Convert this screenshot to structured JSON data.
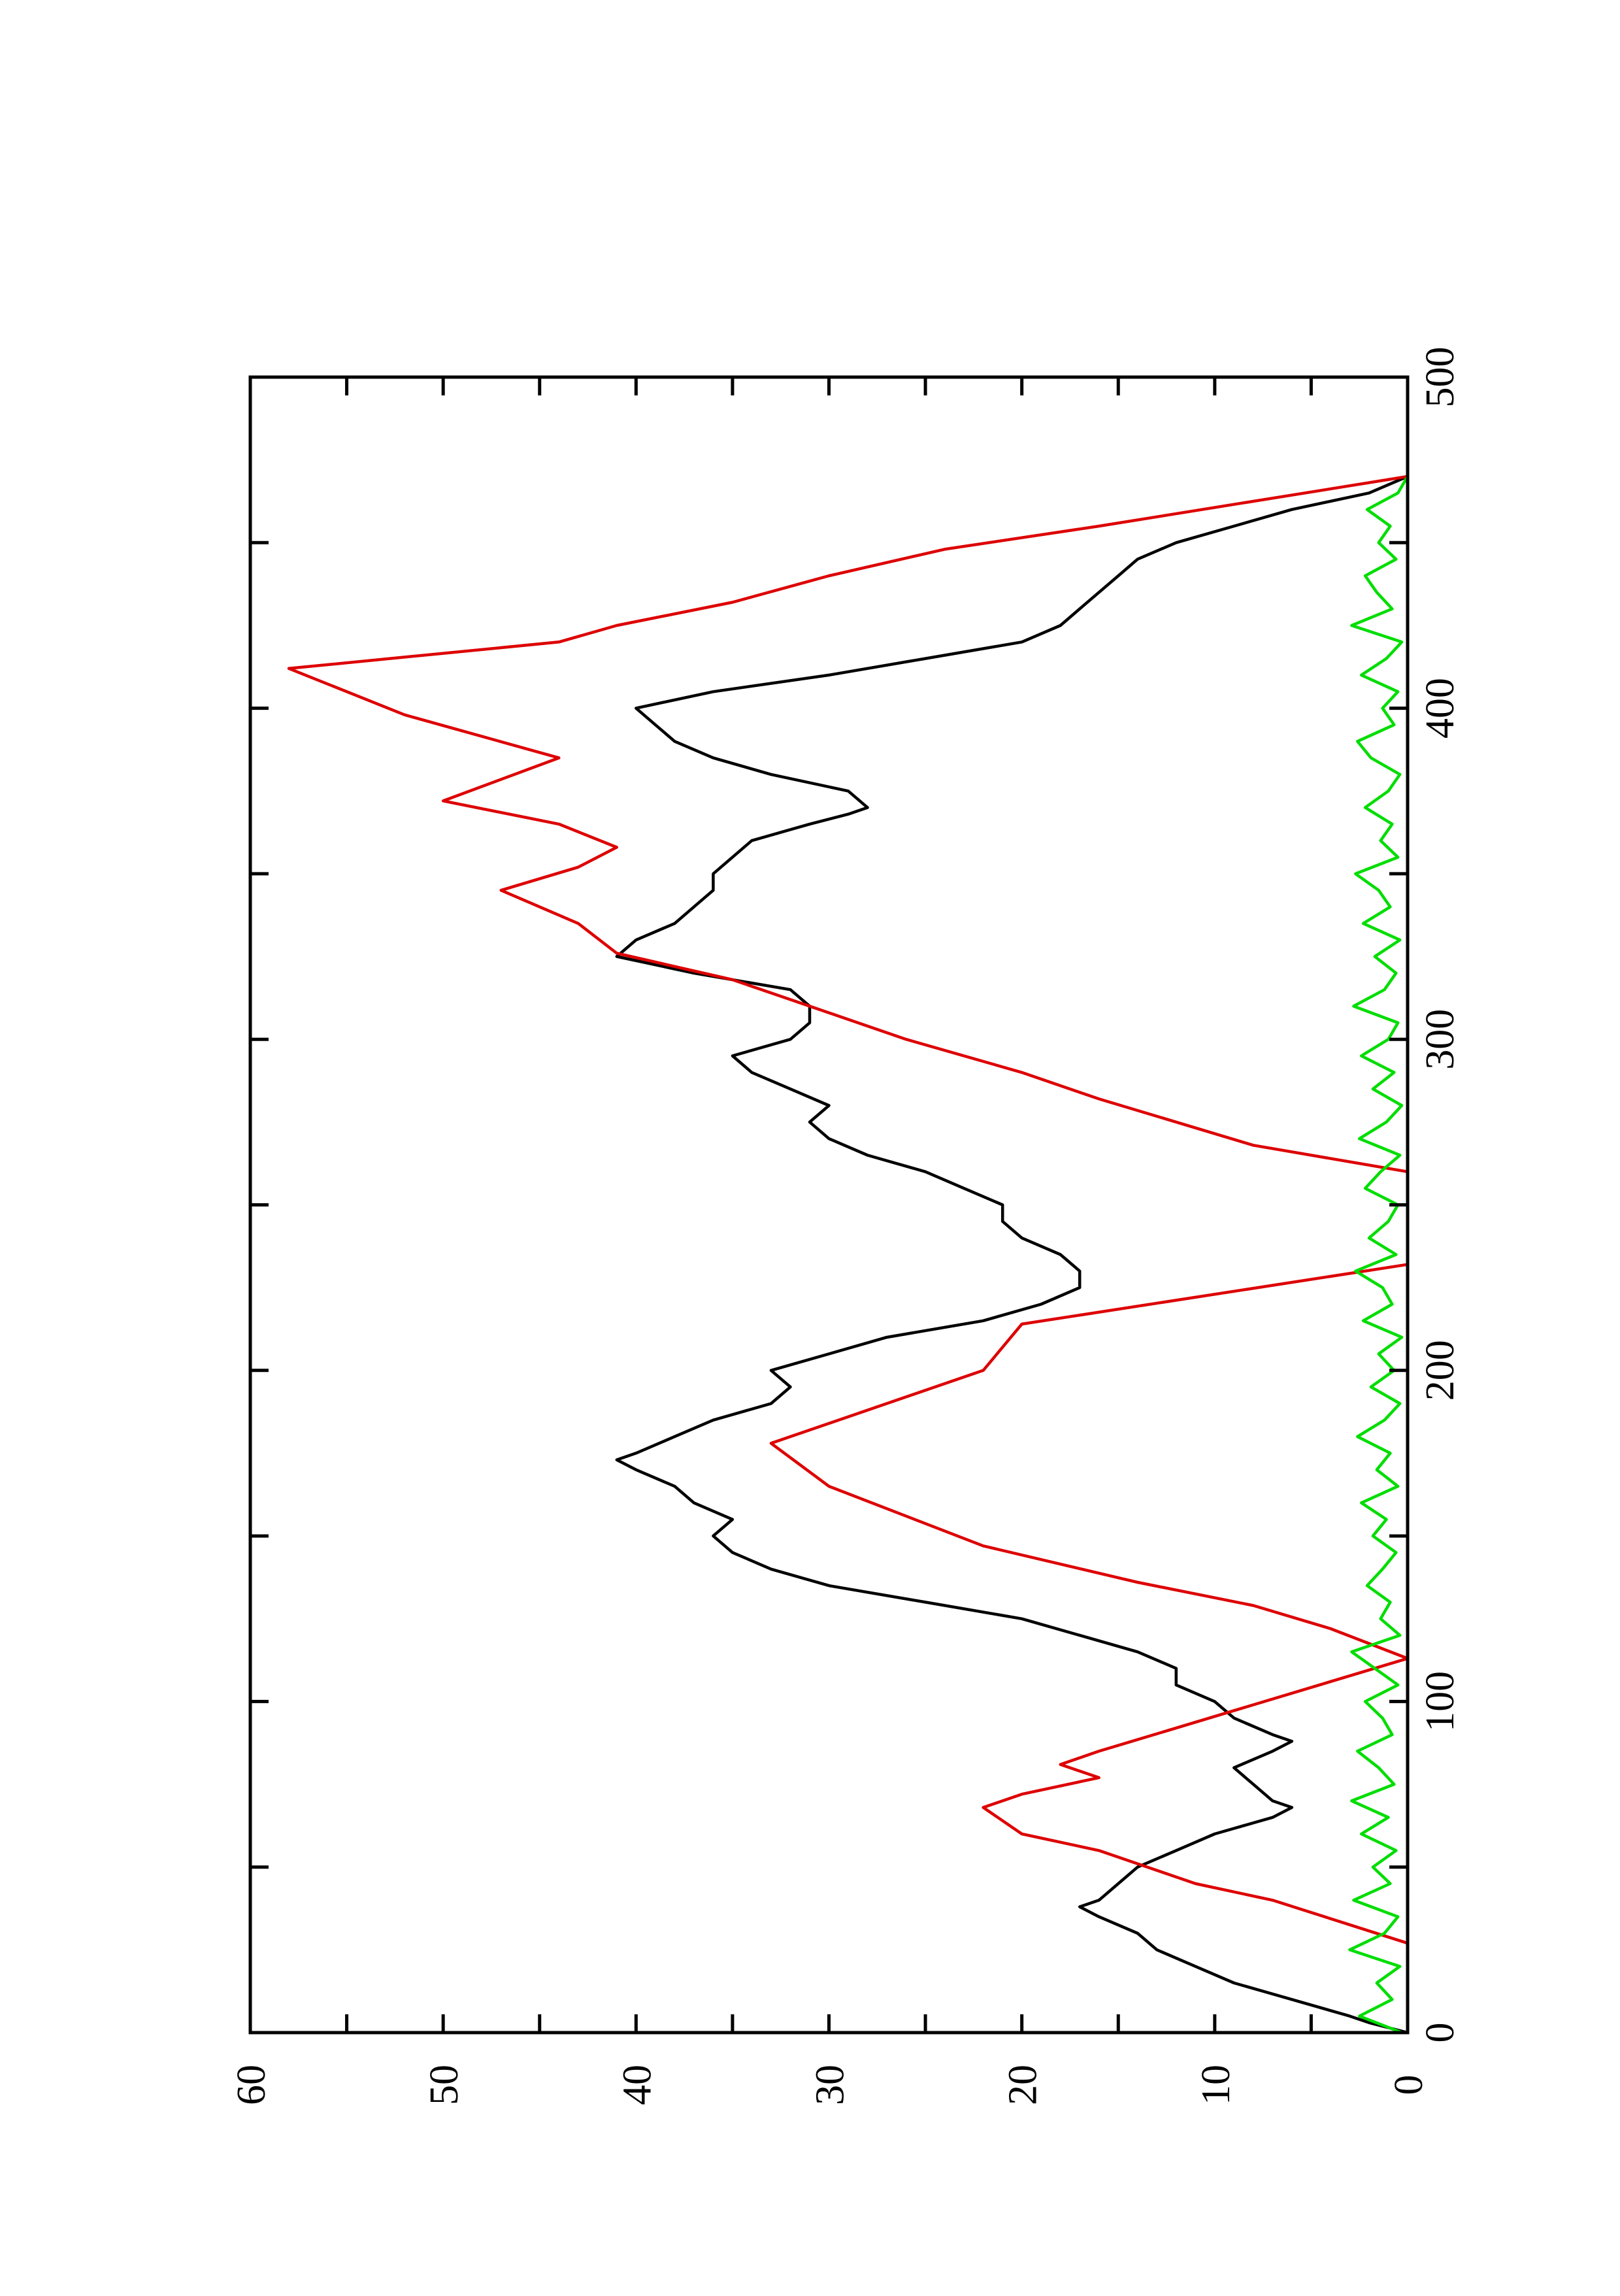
{
  "chart_data": {
    "type": "line",
    "orientation": "rotated-90-ccw",
    "xlim": [
      0,
      500
    ],
    "ylim": [
      0,
      60
    ],
    "x_ticks": [
      0,
      100,
      200,
      300,
      400,
      500
    ],
    "y_ticks": [
      0,
      10,
      20,
      30,
      40,
      50,
      60
    ],
    "x_tick_labels": [
      "0",
      "100",
      "200",
      "300",
      "400",
      "500"
    ],
    "y_tick_labels": [
      "0",
      "10",
      "20",
      "30",
      "40",
      "50",
      "60"
    ],
    "grid": false,
    "legend": "none",
    "series": [
      {
        "color": "#000000",
        "x": [
          0,
          3,
          5,
          10,
          15,
          20,
          25,
          30,
          35,
          38,
          40,
          45,
          50,
          55,
          60,
          65,
          68,
          70,
          75,
          80,
          85,
          88,
          90,
          95,
          100,
          105,
          110,
          115,
          120,
          125,
          130,
          135,
          140,
          145,
          150,
          155,
          160,
          165,
          170,
          173,
          175,
          180,
          185,
          190,
          195,
          200,
          205,
          210,
          215,
          220,
          225,
          230,
          235,
          240,
          245,
          250,
          255,
          260,
          265,
          270,
          275,
          280,
          285,
          290,
          295,
          300,
          305,
          310,
          315,
          320,
          325,
          330,
          335,
          340,
          345,
          350,
          355,
          360,
          365,
          368,
          370,
          375,
          380,
          385,
          390,
          395,
          400,
          405,
          410,
          415,
          420,
          425,
          430,
          435,
          440,
          445,
          450,
          455,
          460,
          465,
          470
        ],
        "y": [
          0,
          2,
          3,
          6,
          9,
          11,
          13,
          14,
          16,
          17,
          16,
          15,
          14,
          12,
          10,
          7,
          6,
          7,
          8,
          9,
          7,
          6,
          7,
          9,
          10,
          12,
          12,
          14,
          17,
          20,
          25,
          30,
          33,
          35,
          36,
          35,
          37,
          38,
          40,
          41,
          40,
          38,
          36,
          33,
          32,
          33,
          30,
          27,
          22,
          19,
          17,
          17,
          18,
          20,
          21,
          21,
          23,
          25,
          28,
          30,
          31,
          30,
          32,
          34,
          35,
          32,
          31,
          31,
          32,
          37,
          41,
          40,
          38,
          37,
          36,
          36,
          35,
          34,
          31,
          29,
          28,
          29,
          33,
          36,
          38,
          39,
          40,
          36,
          30,
          25,
          20,
          18,
          17,
          16,
          15,
          14,
          12,
          9,
          6,
          2,
          0
        ]
      },
      {
        "color": "#dd0000",
        "x": [
          0,
          27,
          27,
          40,
          40,
          45,
          45,
          55,
          55,
          60,
          60,
          68,
          68,
          72,
          72,
          77,
          77,
          81,
          81,
          85,
          85,
          113,
          113,
          122,
          122,
          129,
          129,
          136,
          136,
          147,
          147,
          165,
          165,
          178,
          178,
          200,
          200,
          214,
          214,
          232,
          232,
          260,
          260,
          268,
          268,
          275,
          275,
          282,
          282,
          290,
          290,
          300,
          300,
          310,
          310,
          318,
          318,
          326,
          326,
          335,
          335,
          345,
          345,
          352,
          352,
          358,
          358,
          365,
          365,
          372,
          372,
          385,
          385,
          398,
          398,
          412,
          412,
          420,
          420,
          425,
          425,
          432,
          432,
          440,
          440,
          448,
          448,
          455,
          455,
          470
        ],
        "y": [
          0,
          0,
          0,
          7,
          7,
          11,
          11,
          16,
          16,
          20,
          20,
          22,
          22,
          20,
          20,
          16,
          16,
          18,
          18,
          16,
          16,
          0,
          0,
          4,
          4,
          8,
          8,
          14,
          14,
          22,
          22,
          30,
          30,
          33,
          33,
          22,
          22,
          20,
          20,
          0,
          0,
          0,
          0,
          8,
          8,
          12,
          12,
          16,
          16,
          20,
          20,
          26,
          26,
          31,
          31,
          35,
          35,
          41,
          41,
          43,
          43,
          47,
          47,
          43,
          43,
          41,
          41,
          44,
          44,
          50,
          50,
          44,
          44,
          52,
          52,
          58,
          58,
          44,
          44,
          41,
          41,
          35,
          35,
          30,
          30,
          24,
          24,
          16,
          16,
          0
        ]
      },
      {
        "color": "#00dd00",
        "x": [
          0,
          5,
          10,
          15,
          20,
          25,
          30,
          35,
          40,
          45,
          50,
          55,
          60,
          65,
          70,
          75,
          80,
          85,
          90,
          95,
          100,
          105,
          110,
          115,
          120,
          125,
          130,
          135,
          140,
          145,
          150,
          155,
          160,
          165,
          170,
          175,
          180,
          185,
          190,
          195,
          200,
          205,
          210,
          215,
          220,
          225,
          230,
          235,
          240,
          245,
          250,
          255,
          260,
          265,
          270,
          275,
          280,
          285,
          290,
          295,
          300,
          305,
          310,
          315,
          320,
          325,
          330,
          335,
          340,
          345,
          350,
          355,
          360,
          365,
          370,
          375,
          380,
          385,
          390,
          395,
          400,
          405,
          410,
          415,
          420,
          425,
          430,
          435,
          440,
          445,
          450,
          455,
          460,
          465,
          470
        ],
        "y": [
          0.3,
          2.5,
          0.8,
          1.6,
          0.4,
          3.0,
          1.2,
          0.5,
          2.8,
          0.9,
          1.8,
          0.6,
          2.4,
          1.0,
          2.9,
          0.7,
          1.5,
          2.6,
          0.8,
          1.3,
          2.2,
          0.5,
          1.7,
          2.9,
          0.4,
          1.4,
          0.9,
          2.1,
          1.3,
          0.6,
          1.8,
          1.1,
          2.4,
          0.5,
          1.6,
          0.9,
          2.6,
          1.2,
          0.4,
          1.9,
          0.7,
          1.5,
          0.3,
          2.3,
          0.8,
          1.3,
          2.7,
          0.6,
          2.0,
          1.0,
          0.5,
          2.2,
          1.4,
          0.4,
          2.5,
          1.1,
          0.3,
          1.8,
          0.7,
          2.4,
          1.0,
          0.5,
          2.8,
          1.2,
          0.6,
          1.7,
          0.4,
          2.3,
          0.9,
          1.5,
          2.7,
          0.5,
          1.4,
          0.8,
          2.2,
          1.0,
          0.4,
          1.9,
          2.6,
          0.7,
          1.3,
          0.5,
          2.4,
          1.1,
          0.3,
          2.9,
          0.8,
          1.6,
          2.2,
          0.6,
          1.5,
          0.9,
          2.1,
          0.5,
          0.0
        ]
      }
    ]
  }
}
